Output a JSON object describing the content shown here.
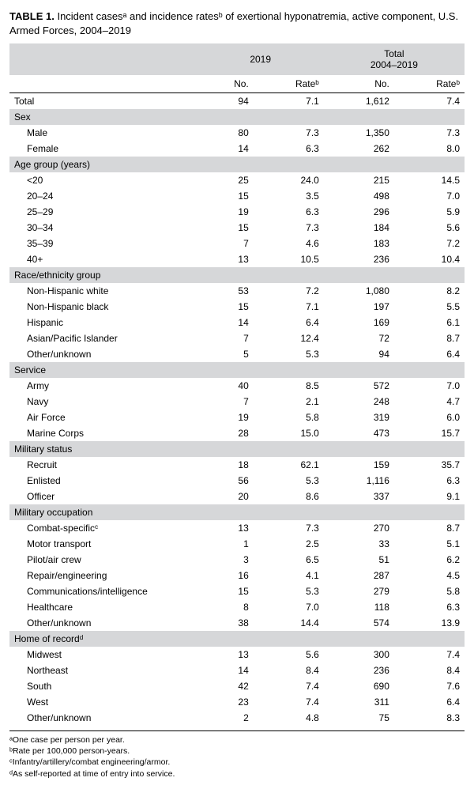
{
  "title_label": "TABLE 1.",
  "title_text": "Incident casesᵃ and incidence ratesᵇ of exertional hyponatremia, active component, U.S. Armed Forces, 2004–2019",
  "col_group_1": "2019",
  "col_group_2": "Total\n2004–2019",
  "col_no": "No.",
  "col_rate": "Rateᵇ",
  "total_label": "Total",
  "total": [
    "94",
    "7.1",
    "1,612",
    "7.4"
  ],
  "sections": [
    {
      "header": "Sex",
      "rows": [
        {
          "label": "Male",
          "v": [
            "80",
            "7.3",
            "1,350",
            "7.3"
          ]
        },
        {
          "label": "Female",
          "v": [
            "14",
            "6.3",
            "262",
            "8.0"
          ]
        }
      ]
    },
    {
      "header": "Age group (years)",
      "rows": [
        {
          "label": "<20",
          "v": [
            "25",
            "24.0",
            "215",
            "14.5"
          ]
        },
        {
          "label": "20–24",
          "v": [
            "15",
            "3.5",
            "498",
            "7.0"
          ]
        },
        {
          "label": "25–29",
          "v": [
            "19",
            "6.3",
            "296",
            "5.9"
          ]
        },
        {
          "label": "30–34",
          "v": [
            "15",
            "7.3",
            "184",
            "5.6"
          ]
        },
        {
          "label": "35–39",
          "v": [
            "7",
            "4.6",
            "183",
            "7.2"
          ]
        },
        {
          "label": "40+",
          "v": [
            "13",
            "10.5",
            "236",
            "10.4"
          ]
        }
      ]
    },
    {
      "header": "Race/ethnicity group",
      "rows": [
        {
          "label": "Non-Hispanic white",
          "v": [
            "53",
            "7.2",
            "1,080",
            "8.2"
          ]
        },
        {
          "label": "Non-Hispanic black",
          "v": [
            "15",
            "7.1",
            "197",
            "5.5"
          ]
        },
        {
          "label": "Hispanic",
          "v": [
            "14",
            "6.4",
            "169",
            "6.1"
          ]
        },
        {
          "label": "Asian/Pacific Islander",
          "v": [
            "7",
            "12.4",
            "72",
            "8.7"
          ]
        },
        {
          "label": "Other/unknown",
          "v": [
            "5",
            "5.3",
            "94",
            "6.4"
          ]
        }
      ]
    },
    {
      "header": "Service",
      "rows": [
        {
          "label": "Army",
          "v": [
            "40",
            "8.5",
            "572",
            "7.0"
          ]
        },
        {
          "label": "Navy",
          "v": [
            "7",
            "2.1",
            "248",
            "4.7"
          ]
        },
        {
          "label": "Air Force",
          "v": [
            "19",
            "5.8",
            "319",
            "6.0"
          ]
        },
        {
          "label": "Marine Corps",
          "v": [
            "28",
            "15.0",
            "473",
            "15.7"
          ]
        }
      ]
    },
    {
      "header": "Military status",
      "rows": [
        {
          "label": "Recruit",
          "v": [
            "18",
            "62.1",
            "159",
            "35.7"
          ]
        },
        {
          "label": "Enlisted",
          "v": [
            "56",
            "5.3",
            "1,116",
            "6.3"
          ]
        },
        {
          "label": "Officer",
          "v": [
            "20",
            "8.6",
            "337",
            "9.1"
          ]
        }
      ]
    },
    {
      "header": "Military occupation",
      "rows": [
        {
          "label": "Combat-specificᶜ",
          "v": [
            "13",
            "7.3",
            "270",
            "8.7"
          ]
        },
        {
          "label": "Motor transport",
          "v": [
            "1",
            "2.5",
            "33",
            "5.1"
          ]
        },
        {
          "label": "Pilot/air crew",
          "v": [
            "3",
            "6.5",
            "51",
            "6.2"
          ]
        },
        {
          "label": "Repair/engineering",
          "v": [
            "16",
            "4.1",
            "287",
            "4.5"
          ]
        },
        {
          "label": "Communications/intelligence",
          "v": [
            "15",
            "5.3",
            "279",
            "5.8"
          ]
        },
        {
          "label": "Healthcare",
          "v": [
            "8",
            "7.0",
            "118",
            "6.3"
          ]
        },
        {
          "label": "Other/unknown",
          "v": [
            "38",
            "14.4",
            "574",
            "13.9"
          ]
        }
      ]
    },
    {
      "header": "Home of recordᵈ",
      "rows": [
        {
          "label": "Midwest",
          "v": [
            "13",
            "5.6",
            "300",
            "7.4"
          ]
        },
        {
          "label": "Northeast",
          "v": [
            "14",
            "8.4",
            "236",
            "8.4"
          ]
        },
        {
          "label": "South",
          "v": [
            "42",
            "7.4",
            "690",
            "7.6"
          ]
        },
        {
          "label": "West",
          "v": [
            "23",
            "7.4",
            "311",
            "6.4"
          ]
        },
        {
          "label": "Other/unknown",
          "v": [
            "2",
            "4.8",
            "75",
            "8.3"
          ]
        }
      ]
    }
  ],
  "footnotes": [
    "ᵃOne case per person per year.",
    "ᵇRate per 100,000 person-years.",
    "ᶜInfantry/artillery/combat engineering/armor.",
    "ᵈAs self-reported at time of entry into service."
  ],
  "colors": {
    "section_bg": "#d6d7d9",
    "text": "#000000",
    "bg": "#ffffff"
  }
}
